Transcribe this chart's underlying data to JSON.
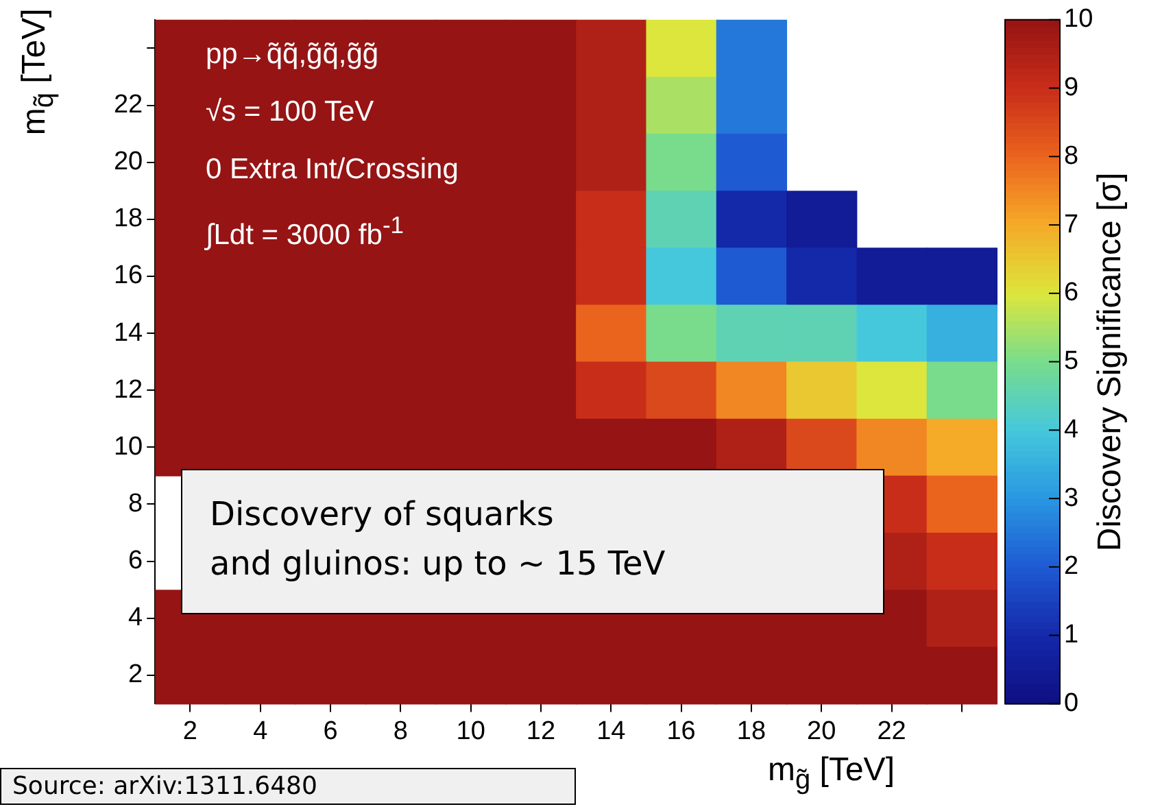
{
  "chart_data": {
    "type": "heatmap",
    "xlabel": "m$_{g̃}$ [TeV]",
    "ylabel": "m$_{q̃}$ [TeV]",
    "clabel": "Discovery Significance [σ]",
    "categories": [
      "2",
      "4",
      "6",
      "8",
      "10",
      "12",
      "14",
      "16",
      "18",
      "20",
      "22",
      null
    ],
    "y_categories": [
      null,
      "22",
      "20",
      "18",
      "16",
      "14",
      "12",
      "10",
      "8",
      "6",
      "4",
      "2"
    ],
    "cells": [
      [
        10,
        10,
        10,
        10,
        10,
        10,
        9.5,
        6,
        2.5,
        null,
        null,
        null
      ],
      [
        10,
        10,
        10,
        10,
        10,
        10,
        9.5,
        5.5,
        2.5,
        null,
        null,
        null
      ],
      [
        10,
        10,
        10,
        10,
        10,
        10,
        9.5,
        5,
        2,
        null,
        null,
        null
      ],
      [
        10,
        10,
        10,
        10,
        10,
        10,
        9,
        4.5,
        1,
        0.5,
        null,
        null
      ],
      [
        10,
        10,
        10,
        10,
        10,
        10,
        9,
        4,
        2,
        1,
        0.5,
        0.5
      ],
      [
        10,
        10,
        10,
        10,
        10,
        10,
        8,
        5,
        4.5,
        4.5,
        4,
        3.5
      ],
      [
        10,
        10,
        10,
        10,
        10,
        10,
        9,
        8.5,
        7.5,
        6.5,
        6,
        5
      ],
      [
        10,
        10,
        10,
        10,
        10,
        10,
        10,
        10,
        9.5,
        8.5,
        7.5,
        7
      ],
      [
        null,
        null,
        null,
        null,
        null,
        null,
        null,
        null,
        null,
        null,
        9,
        8
      ],
      [
        null,
        null,
        null,
        null,
        null,
        null,
        null,
        null,
        null,
        null,
        9.5,
        9
      ],
      [
        10,
        10,
        10,
        10,
        10,
        10,
        10,
        10,
        10,
        10,
        10,
        9.5
      ],
      [
        10,
        10,
        10,
        10,
        10,
        10,
        10,
        10,
        10,
        10,
        10,
        10
      ]
    ],
    "clim": [
      0,
      10
    ],
    "cticks": [
      0,
      1,
      2,
      3,
      4,
      5,
      6,
      7,
      8,
      9,
      10
    ],
    "annotations": [
      "pp→q̃q̃,g̃q̃,g̃g̃",
      "√s = 100 TeV",
      "0 Extra Int/Crossing",
      "∫Ldt = 3000 fb$^{-1}$",
      "Discovery of squarks\nand gluinos: up to ~ 15 TeV",
      "Source: arXiv:1311.6480"
    ]
  }
}
